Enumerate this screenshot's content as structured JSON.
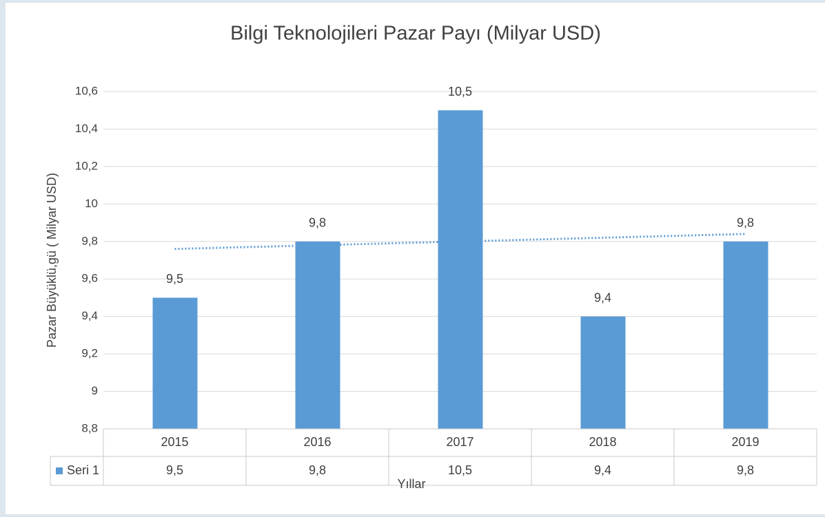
{
  "chart_data": {
    "type": "bar",
    "title": "Bilgi Teknolojileri  Pazar Payı (Milyar USD)",
    "ylabel": "Pazar Büyüklü,gü ( Milyar USD)",
    "xlabel": "Yıllar",
    "categories": [
      "2015",
      "2016",
      "2017",
      "2018",
      "2019"
    ],
    "series": [
      {
        "name": "Seri 1",
        "color": "#5b9bd5",
        "values": [
          9.5,
          9.8,
          10.5,
          9.4,
          9.8
        ],
        "value_labels": [
          "9,5",
          "9,8",
          "10,5",
          "9,4",
          "9,8"
        ]
      }
    ],
    "ylim": [
      8.8,
      10.6
    ],
    "yticks": [
      {
        "value": 8.8,
        "label": "8,8"
      },
      9,
      {
        "value": 9.2,
        "label": "9,2"
      },
      {
        "value": 9.4,
        "label": "9,4"
      },
      {
        "value": 9.6,
        "label": "9,6"
      },
      {
        "value": 9.8,
        "label": "9,8"
      },
      10,
      {
        "value": 10.2,
        "label": "10,2"
      },
      {
        "value": 10.4,
        "label": "10,4"
      },
      {
        "value": 10.6,
        "label": "10,6"
      }
    ],
    "grid": true,
    "trendline": "linear",
    "data_table": true
  }
}
